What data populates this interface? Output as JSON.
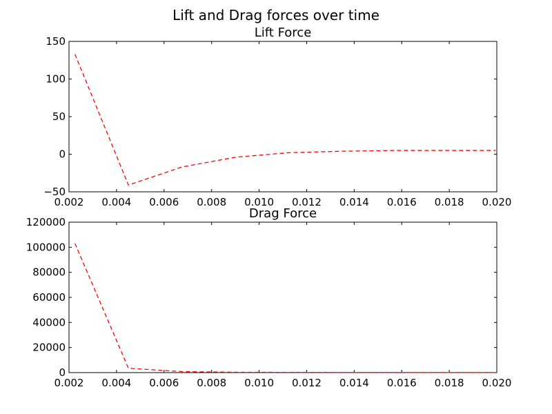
{
  "figure": {
    "title": "Lift and Drag forces over time"
  },
  "chart_data": [
    {
      "type": "line",
      "title": "Lift Force",
      "xlabel": "",
      "ylabel": "",
      "xlim": [
        0.002,
        0.02
      ],
      "ylim": [
        -50,
        150
      ],
      "xticks": [
        0.002,
        0.004,
        0.006,
        0.008,
        0.01,
        0.012,
        0.014,
        0.016,
        0.018,
        0.02
      ],
      "xtick_labels": [
        "0.002",
        "0.004",
        "0.006",
        "0.008",
        "0.010",
        "0.012",
        "0.014",
        "0.016",
        "0.018",
        "0.020"
      ],
      "yticks": [
        -50,
        0,
        50,
        100,
        150
      ],
      "ytick_labels": [
        "−50",
        "0",
        "50",
        "100",
        "150"
      ],
      "grid": false,
      "legend": "none",
      "series": [
        {
          "color": "#ff0000",
          "style": "dashed",
          "x": [
            0.00225,
            0.0045,
            0.00675,
            0.009,
            0.01125,
            0.0135,
            0.01575,
            0.018,
            0.01995
          ],
          "y": [
            133,
            -41,
            -17,
            -4,
            2,
            4,
            5,
            5,
            5
          ]
        }
      ]
    },
    {
      "type": "line",
      "title": "Drag Force",
      "xlabel": "",
      "ylabel": "",
      "xlim": [
        0.002,
        0.02
      ],
      "ylim": [
        0,
        120000
      ],
      "xticks": [
        0.002,
        0.004,
        0.006,
        0.008,
        0.01,
        0.012,
        0.014,
        0.016,
        0.018,
        0.02
      ],
      "xtick_labels": [
        "0.002",
        "0.004",
        "0.006",
        "0.008",
        "0.010",
        "0.012",
        "0.014",
        "0.016",
        "0.018",
        "0.020"
      ],
      "yticks": [
        0,
        20000,
        40000,
        60000,
        80000,
        100000,
        120000
      ],
      "ytick_labels": [
        "0",
        "20000",
        "40000",
        "60000",
        "80000",
        "100000",
        "120000"
      ],
      "grid": false,
      "legend": "none",
      "series": [
        {
          "color": "#ff0000",
          "style": "dashed",
          "x": [
            0.00225,
            0.0045,
            0.00675,
            0.009,
            0.01125,
            0.0135,
            0.01575,
            0.018,
            0.01995
          ],
          "y": [
            103000,
            3500,
            800,
            300,
            200,
            150,
            120,
            100,
            100
          ]
        }
      ]
    }
  ]
}
